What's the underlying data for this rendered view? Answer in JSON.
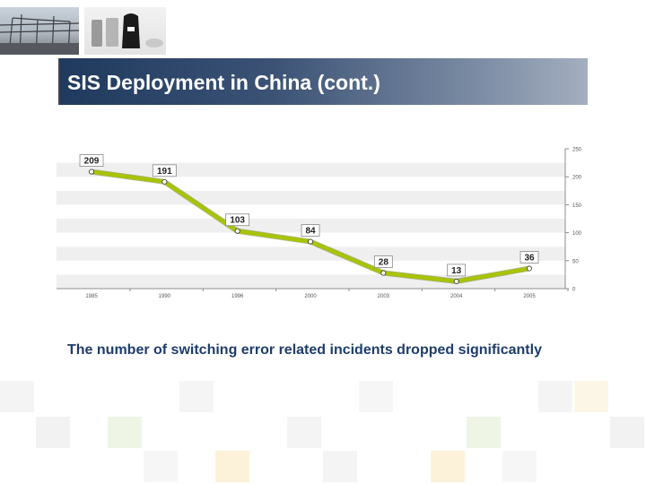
{
  "header": {
    "title": "SIS Deployment in China (cont.)"
  },
  "caption": "The number of switching error related incidents dropped significantly",
  "colors": {
    "title_bar_dark": "#1f3a5e",
    "title_bar_light": "#a4afbf",
    "line": "#a8c400",
    "caption": "#1e3d6b"
  },
  "chart_data": {
    "type": "line",
    "categories": [
      "1985",
      "1990",
      "1996",
      "2000",
      "2003",
      "2004",
      "2005"
    ],
    "values": [
      209,
      191,
      103,
      84,
      28,
      13,
      36
    ],
    "title": "",
    "xlabel": "",
    "ylabel": "",
    "ylim": [
      0,
      250
    ],
    "yticks": [
      "0",
      "50",
      "100",
      "150",
      "200",
      "250"
    ],
    "y_axis_side": "right",
    "grid": "horizontal bands",
    "data_labels": true
  }
}
